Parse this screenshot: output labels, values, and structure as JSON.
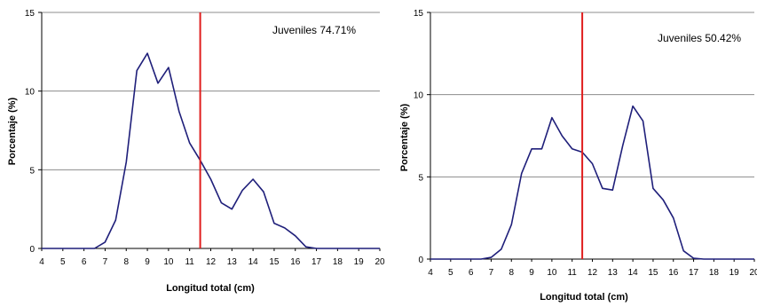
{
  "chart_data": [
    {
      "type": "line",
      "title": "",
      "xlabel": "Longitud total (cm)",
      "ylabel": "Porcentaje (%)",
      "xlim": [
        4,
        20
      ],
      "ylim": [
        0,
        15
      ],
      "xticks": [
        "4",
        "5",
        "6",
        "7",
        "8",
        "9",
        "10",
        "11",
        "12",
        "13",
        "14",
        "15",
        "16",
        "17",
        "18",
        "19",
        "20"
      ],
      "yticks": [
        "0",
        "5",
        "10",
        "15"
      ],
      "grid": "horizontal",
      "annotation": "Juveniles  74.71%",
      "reference_line_x": 11.5,
      "line_color": "#1f1f7a",
      "reference_color": "#e01e1e",
      "series": [
        {
          "x": [
            4,
            4.5,
            5,
            5.5,
            6,
            6.5,
            7,
            7.5,
            8,
            8.5,
            9,
            9.5,
            10,
            10.5,
            11,
            11.5,
            12,
            12.5,
            13,
            13.5,
            14,
            14.5,
            15,
            15.5,
            16,
            16.5,
            17,
            17.5,
            18,
            18.5,
            19,
            19.5,
            20
          ],
          "values": [
            0,
            0,
            0,
            0,
            0,
            0,
            0.4,
            1.8,
            5.5,
            11.3,
            12.4,
            10.5,
            11.5,
            8.7,
            6.7,
            5.6,
            4.4,
            2.9,
            2.5,
            3.7,
            4.4,
            3.6,
            1.6,
            1.3,
            0.8,
            0.1,
            0,
            0,
            0,
            0,
            0,
            0,
            0
          ]
        }
      ]
    },
    {
      "type": "line",
      "title": "",
      "xlabel": "Longitud total (cm)",
      "ylabel": "Porcentaje (%)",
      "xlim": [
        4,
        20
      ],
      "ylim": [
        0,
        15
      ],
      "xticks": [
        "4",
        "5",
        "6",
        "7",
        "8",
        "9",
        "10",
        "11",
        "12",
        "13",
        "14",
        "15",
        "16",
        "17",
        "18",
        "19",
        "20"
      ],
      "yticks": [
        "0",
        "5",
        "10",
        "15"
      ],
      "grid": "horizontal",
      "annotation": "Juveniles  50.42%",
      "reference_line_x": 11.5,
      "line_color": "#1f1f7a",
      "reference_color": "#e01e1e",
      "series": [
        {
          "x": [
            4,
            4.5,
            5,
            5.5,
            6,
            6.5,
            7,
            7.5,
            8,
            8.5,
            9,
            9.5,
            10,
            10.5,
            11,
            11.5,
            12,
            12.5,
            13,
            13.5,
            14,
            14.5,
            15,
            15.5,
            16,
            16.5,
            17,
            17.5,
            18,
            18.5,
            19,
            19.5,
            20
          ],
          "values": [
            0,
            0,
            0,
            0,
            0,
            0,
            0.1,
            0.6,
            2.1,
            5.2,
            6.7,
            6.7,
            8.6,
            7.5,
            6.7,
            6.5,
            5.8,
            4.3,
            4.2,
            6.9,
            9.3,
            8.4,
            4.3,
            3.6,
            2.5,
            0.5,
            0.05,
            0,
            0,
            0,
            0,
            0,
            0
          ]
        }
      ]
    }
  ]
}
